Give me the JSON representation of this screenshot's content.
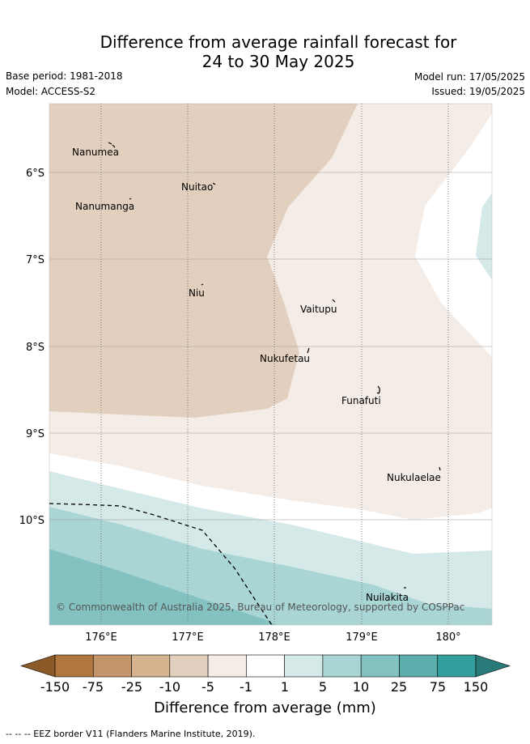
{
  "title": {
    "line1": "Difference from average rainfall forecast for",
    "line2": "24 to 30 May 2025"
  },
  "meta": {
    "base_period": "Base period: 1981-2018",
    "model": "Model: ACCESS-S2",
    "model_run": "Model run: 17/05/2025",
    "issued": "Issued: 19/05/2025"
  },
  "axes": {
    "lon_ticks": [
      "176°E",
      "177°E",
      "178°E",
      "179°E",
      "180°"
    ],
    "lat_ticks": [
      "6°S",
      "7°S",
      "8°S",
      "9°S",
      "10°S"
    ]
  },
  "places": [
    {
      "name": "Nanumea"
    },
    {
      "name": "Nuitao"
    },
    {
      "name": "Nanumanga"
    },
    {
      "name": "Niu"
    },
    {
      "name": "Vaitupu"
    },
    {
      "name": "Nukufetau"
    },
    {
      "name": "Funafuti"
    },
    {
      "name": "Nukulaelae"
    },
    {
      "name": "Nuilakita"
    }
  ],
  "copyright": "© Commonwealth of Australia 2025, Bureau of Meteorology, supported by COSPPac",
  "colorbar": {
    "title": "Difference from average (mm)",
    "labels": [
      "-150",
      "-75",
      "-25",
      "-10",
      "-5",
      "-1",
      "1",
      "5",
      "10",
      "25",
      "75",
      "150"
    ],
    "colors": [
      "#8c5a28",
      "#b0773e",
      "#c4956a",
      "#d6b38f",
      "#e3cfbd",
      "#f4ece6",
      "#ffffff",
      "#d4e9e8",
      "#a9d5d4",
      "#84c2c1",
      "#5caeac",
      "#339e9c",
      "#2a7a79"
    ]
  },
  "footer": "-- -- -- EEZ border V11 (Flanders Marine Institute, 2019)."
}
